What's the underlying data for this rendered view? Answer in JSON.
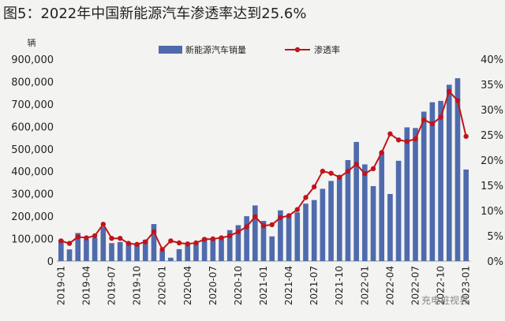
{
  "title": "图5：2022年中国新能源汽车渗透率达到25.6%",
  "watermark": "充电桩视界",
  "chart_data": {
    "type": "bar+line",
    "yleft_unit": "辆",
    "yleft_ticks": [
      "0",
      "100,000",
      "200,000",
      "300,000",
      "400,000",
      "500,000",
      "600,000",
      "700,000",
      "800,000",
      "900,000"
    ],
    "yleft_range": [
      0,
      900000
    ],
    "yright_ticks": [
      "0%",
      "5%",
      "10%",
      "15%",
      "20%",
      "25%",
      "30%",
      "35%",
      "40%"
    ],
    "yright_range": [
      0,
      40
    ],
    "x_tick_labels": [
      "2019-01",
      "2019-04",
      "2019-07",
      "2019-10",
      "2020-01",
      "2020-04",
      "2020-07",
      "2020-10",
      "2021-01",
      "2021-04",
      "2021-07",
      "2021-10",
      "2022-01",
      "2022-04",
      "2022-07",
      "2022-10",
      "2023-01"
    ],
    "categories": [
      "2019-01",
      "2019-02",
      "2019-03",
      "2019-04",
      "2019-05",
      "2019-06",
      "2019-07",
      "2019-08",
      "2019-09",
      "2019-10",
      "2019-11",
      "2019-12",
      "2020-01",
      "2020-02",
      "2020-03",
      "2020-04",
      "2020-05",
      "2020-06",
      "2020-07",
      "2020-08",
      "2020-09",
      "2020-10",
      "2020-11",
      "2020-12",
      "2021-01",
      "2021-02",
      "2021-03",
      "2021-04",
      "2021-05",
      "2021-06",
      "2021-07",
      "2021-08",
      "2021-09",
      "2021-10",
      "2021-11",
      "2021-12",
      "2022-01",
      "2022-02",
      "2022-03",
      "2022-04",
      "2022-05",
      "2022-06",
      "2022-07",
      "2022-08",
      "2022-09",
      "2022-10",
      "2022-11",
      "2022-12",
      "2023-01"
    ],
    "series": [
      {
        "name": "新能源汽车销量",
        "type": "bar",
        "color": "#4f6bad",
        "values": [
          95000,
          52000,
          125000,
          97000,
          104000,
          152000,
          80000,
          85000,
          80000,
          75000,
          95000,
          165000,
          45000,
          15000,
          53000,
          72000,
          82000,
          104000,
          98000,
          109000,
          138000,
          160000,
          200000,
          248000,
          179000,
          110000,
          226000,
          206000,
          217000,
          256000,
          272000,
          322000,
          357000,
          383000,
          450000,
          531000,
          431000,
          334000,
          484000,
          299000,
          447000,
          596000,
          593000,
          666000,
          708000,
          714000,
          786000,
          815000,
          408000
        ]
      },
      {
        "name": "渗透率",
        "type": "line",
        "color": "#c0141c",
        "values": [
          4.0,
          3.5,
          4.8,
          4.6,
          5.0,
          7.3,
          4.5,
          4.5,
          3.5,
          3.3,
          3.8,
          5.8,
          2.3,
          4.0,
          3.6,
          3.4,
          3.6,
          4.3,
          4.4,
          4.6,
          5.0,
          5.8,
          6.8,
          8.8,
          7.0,
          7.2,
          8.6,
          9.0,
          10.2,
          12.6,
          14.7,
          17.8,
          17.4,
          16.6,
          17.8,
          19.2,
          17.3,
          18.3,
          21.5,
          25.2,
          24.0,
          23.7,
          24.2,
          28.0,
          27.2,
          28.5,
          33.6,
          31.8,
          24.7
        ]
      }
    ],
    "legend_position": "top"
  }
}
